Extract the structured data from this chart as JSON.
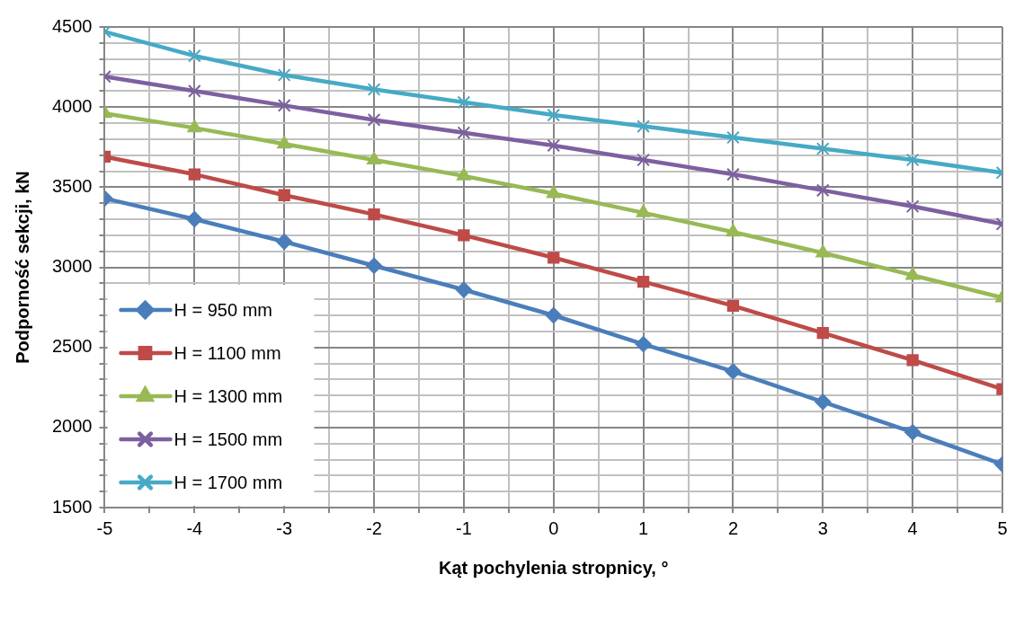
{
  "chart_data": {
    "type": "line",
    "xlabel": "Kąt pochylenia stropnicy, °",
    "ylabel": "Podporność sekcji, kN",
    "x": [
      -5,
      -4,
      -3,
      -2,
      -1,
      0,
      1,
      2,
      3,
      4,
      5
    ],
    "xlim": [
      -5,
      5
    ],
    "xticks": [
      -5,
      {
        "value": -4.5,
        "label": null
      },
      -4,
      {
        "value": -3.5,
        "label": null
      },
      -3,
      {
        "value": -2.5,
        "label": null
      },
      -2,
      {
        "value": -1.5,
        "label": null
      },
      -1,
      {
        "value": -0.5,
        "label": null
      },
      0,
      {
        "value": 0.5,
        "label": null
      },
      1,
      {
        "value": 1.5,
        "label": null
      },
      2,
      {
        "value": 2.5,
        "label": null
      },
      3,
      {
        "value": 3.5,
        "label": null
      },
      4,
      {
        "value": 4.5,
        "label": null
      },
      5
    ],
    "ylim": [
      1500,
      4500
    ],
    "yticks": [
      1500,
      {
        "value": 1600,
        "label": null
      },
      {
        "value": 1700,
        "label": null
      },
      {
        "value": 1800,
        "label": null
      },
      {
        "value": 1900,
        "label": null
      },
      2000,
      {
        "value": 2100,
        "label": null
      },
      {
        "value": 2200,
        "label": null
      },
      {
        "value": 2300,
        "label": null
      },
      {
        "value": 2400,
        "label": null
      },
      2500,
      {
        "value": 2600,
        "label": null
      },
      {
        "value": 2700,
        "label": null
      },
      {
        "value": 2800,
        "label": null
      },
      {
        "value": 2900,
        "label": null
      },
      3000,
      {
        "value": 3100,
        "label": null
      },
      {
        "value": 3200,
        "label": null
      },
      {
        "value": 3300,
        "label": null
      },
      {
        "value": 3400,
        "label": null
      },
      3500,
      {
        "value": 3600,
        "label": null
      },
      {
        "value": 3700,
        "label": null
      },
      {
        "value": 3800,
        "label": null
      },
      {
        "value": 3900,
        "label": null
      },
      4000,
      {
        "value": 4100,
        "label": null
      },
      {
        "value": 4200,
        "label": null
      },
      {
        "value": 4300,
        "label": null
      },
      {
        "value": 4400,
        "label": null
      },
      4500
    ],
    "grid": true,
    "legend": "bottom left",
    "line_style": "solid",
    "series": [
      {
        "name": "H = 950 mm",
        "color": "#4a7ebb",
        "marker": "diamond",
        "values": [
          3430,
          3300,
          3160,
          3010,
          2860,
          2700,
          2520,
          2350,
          2160,
          1970,
          1770
        ]
      },
      {
        "name": "H = 1100 mm",
        "color": "#be4b48",
        "marker": "square",
        "values": [
          3690,
          3580,
          3450,
          3330,
          3200,
          3060,
          2910,
          2760,
          2590,
          2420,
          2240
        ]
      },
      {
        "name": "H = 1300 mm",
        "color": "#98b954",
        "marker": "triangle",
        "values": [
          3960,
          3870,
          3770,
          3670,
          3570,
          3460,
          3340,
          3220,
          3090,
          2950,
          2810
        ]
      },
      {
        "name": "H = 1500 mm",
        "color": "#7d60a0",
        "marker": "cross",
        "values": [
          4190,
          4100,
          4010,
          3920,
          3840,
          3760,
          3670,
          3580,
          3480,
          3380,
          3270
        ]
      },
      {
        "name": "H = 1700 mm",
        "color": "#46aac5",
        "marker": "cross",
        "values": [
          4470,
          4320,
          4200,
          4110,
          4030,
          3950,
          3880,
          3810,
          3740,
          3670,
          3590
        ]
      }
    ]
  }
}
